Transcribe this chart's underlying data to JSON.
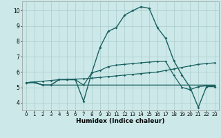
{
  "xlabel": "Humidex (Indice chaleur)",
  "bg_color": "#cce8e8",
  "grid_color": "#aacccc",
  "line_color": "#1a6060",
  "xlim": [
    -0.5,
    23.5
  ],
  "ylim": [
    3.5,
    10.6
  ],
  "xticks": [
    0,
    1,
    2,
    3,
    4,
    5,
    6,
    7,
    8,
    9,
    10,
    11,
    12,
    13,
    14,
    15,
    16,
    17,
    18,
    19,
    20,
    21,
    22,
    23
  ],
  "yticks": [
    4,
    5,
    6,
    7,
    8,
    9,
    10
  ],
  "line1_x": [
    0,
    1,
    2,
    3,
    4,
    5,
    6,
    7,
    8,
    9,
    10,
    11,
    12,
    13,
    14,
    15,
    16,
    17,
    18,
    19,
    20,
    21,
    22,
    23
  ],
  "line1_y": [
    5.3,
    5.3,
    5.15,
    5.15,
    5.15,
    5.15,
    5.15,
    5.15,
    5.15,
    5.15,
    5.15,
    5.15,
    5.15,
    5.15,
    5.15,
    5.15,
    5.15,
    5.15,
    5.15,
    5.15,
    5.15,
    5.15,
    5.15,
    5.15
  ],
  "line2_x": [
    0,
    1,
    2,
    3,
    4,
    5,
    6,
    7,
    8,
    9,
    10,
    11,
    12,
    13,
    14,
    15,
    16,
    17,
    18,
    19,
    20,
    21,
    22,
    23
  ],
  "line2_y": [
    5.3,
    5.35,
    5.4,
    5.45,
    5.5,
    5.52,
    5.54,
    5.56,
    5.6,
    5.65,
    5.7,
    5.75,
    5.8,
    5.85,
    5.9,
    5.95,
    6.0,
    6.1,
    6.2,
    6.3,
    6.4,
    6.5,
    6.55,
    6.6
  ],
  "line3_x": [
    0,
    1,
    2,
    3,
    4,
    5,
    6,
    7,
    8,
    9,
    10,
    11,
    12,
    13,
    14,
    15,
    16,
    17,
    18,
    19,
    20,
    21,
    22,
    23
  ],
  "line3_y": [
    5.3,
    5.35,
    5.15,
    5.15,
    5.5,
    5.5,
    5.5,
    5.15,
    5.95,
    6.1,
    6.35,
    6.45,
    6.5,
    6.55,
    6.6,
    6.65,
    6.68,
    6.7,
    5.8,
    5.0,
    4.85,
    5.05,
    5.1,
    5.1
  ],
  "line4_x": [
    0,
    1,
    2,
    3,
    4,
    5,
    6,
    7,
    8,
    9,
    10,
    11,
    12,
    13,
    14,
    15,
    16,
    17,
    18,
    19,
    20,
    21,
    22,
    23
  ],
  "line4_y": [
    5.3,
    5.35,
    5.15,
    5.15,
    5.5,
    5.5,
    5.5,
    4.1,
    5.95,
    7.6,
    8.65,
    8.9,
    9.7,
    10.0,
    10.25,
    10.15,
    8.9,
    8.2,
    6.75,
    5.8,
    5.0,
    3.7,
    5.05,
    5.05
  ]
}
